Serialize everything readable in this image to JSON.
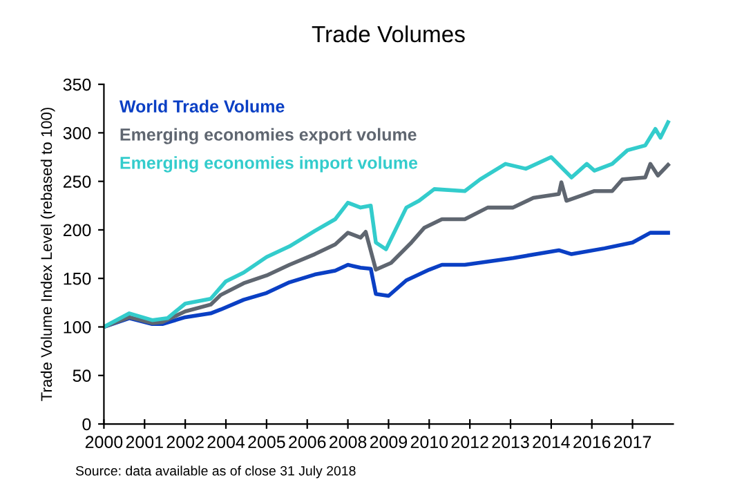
{
  "chart_data": {
    "type": "line",
    "title": "Trade Volumes",
    "ylabel": "Trade Volume Index Level (rebased to 100)",
    "annotations": [
      "Source: data available as of close 31 July 2018"
    ],
    "xlim": [
      "2000-01",
      "2018-09"
    ],
    "ylim": [
      0,
      350
    ],
    "yticks": [
      0,
      50,
      100,
      150,
      200,
      250,
      300,
      350
    ],
    "xticks": [
      {
        "value": "2000-01",
        "label": "2000"
      },
      {
        "value": "2001-05",
        "label": "2001"
      },
      {
        "value": "2002-09",
        "label": "2002"
      },
      {
        "value": "2004-01",
        "label": "2004"
      },
      {
        "value": "2005-05",
        "label": "2005"
      },
      {
        "value": "2006-09",
        "label": "2006"
      },
      {
        "value": "2008-01",
        "label": "2008"
      },
      {
        "value": "2009-05",
        "label": "2009"
      },
      {
        "value": "2010-09",
        "label": "2010"
      },
      {
        "value": "2012-01",
        "label": "2012"
      },
      {
        "value": "2013-05",
        "label": "2013"
      },
      {
        "value": "2014-09",
        "label": "2014"
      },
      {
        "value": "2016-01",
        "label": "2016"
      },
      {
        "value": "2017-05",
        "label": "2017"
      }
    ],
    "grid": false,
    "legend": "top left",
    "marker": "none",
    "line_style": "solid",
    "series": [
      {
        "name": "World Trade Volume",
        "color": "#0a3fc4",
        "x": [
          "2000-01",
          "2000-11",
          "2001-08",
          "2001-12",
          "2002-09",
          "2003-07",
          "2003-11",
          "2004-08",
          "2005-05",
          "2006-02",
          "2006-12",
          "2007-08",
          "2008-01",
          "2008-06",
          "2008-10",
          "2008-12",
          "2009-05",
          "2009-12",
          "2010-09",
          "2011-02",
          "2011-11",
          "2013-06",
          "2014-12",
          "2015-05",
          "2016-06",
          "2017-05",
          "2017-12",
          "2018-07"
        ],
        "values": [
          100,
          109,
          103,
          103,
          110,
          114,
          118,
          128,
          135,
          146,
          154,
          158,
          164,
          161,
          160,
          134,
          132,
          148,
          159,
          164,
          164,
          171,
          179,
          175,
          181,
          187,
          197,
          197
        ]
      },
      {
        "name": "Emerging economies export volume",
        "color": "#5f6670",
        "x": [
          "2000-01",
          "2000-11",
          "2001-08",
          "2001-12",
          "2002-09",
          "2003-07",
          "2003-11",
          "2004-08",
          "2005-05",
          "2006-02",
          "2006-12",
          "2007-08",
          "2008-01",
          "2008-06",
          "2008-08",
          "2008-12",
          "2009-06",
          "2010-02",
          "2010-07",
          "2011-02",
          "2011-11",
          "2012-08",
          "2013-06",
          "2014-02",
          "2014-12",
          "2015-01",
          "2015-03",
          "2016-02",
          "2016-09",
          "2017-01",
          "2017-10",
          "2017-12",
          "2018-03",
          "2018-07"
        ],
        "values": [
          100,
          110,
          104,
          105,
          116,
          123,
          133,
          145,
          153,
          164,
          175,
          185,
          197,
          192,
          198,
          159,
          166,
          187,
          202,
          211,
          211,
          223,
          223,
          233,
          237,
          249,
          230,
          240,
          240,
          252,
          254,
          268,
          256,
          267
        ]
      },
      {
        "name": "Emerging economies import volume",
        "color": "#33cccc",
        "x": [
          "2000-01",
          "2000-11",
          "2001-08",
          "2002-02",
          "2002-09",
          "2003-07",
          "2004-01",
          "2004-08",
          "2005-05",
          "2006-02",
          "2006-12",
          "2007-08",
          "2008-01",
          "2008-06",
          "2008-10",
          "2008-12",
          "2009-04",
          "2009-12",
          "2010-05",
          "2010-11",
          "2011-11",
          "2012-05",
          "2013-03",
          "2013-11",
          "2014-09",
          "2015-05",
          "2015-11",
          "2016-02",
          "2016-09",
          "2017-03",
          "2017-10",
          "2018-02",
          "2018-04",
          "2018-07"
        ],
        "values": [
          100,
          114,
          107,
          109,
          124,
          129,
          147,
          156,
          172,
          183,
          199,
          211,
          228,
          223,
          225,
          187,
          180,
          223,
          230,
          242,
          240,
          252,
          268,
          263,
          275,
          254,
          268,
          261,
          268,
          282,
          287,
          304,
          295,
          311
        ]
      }
    ]
  }
}
